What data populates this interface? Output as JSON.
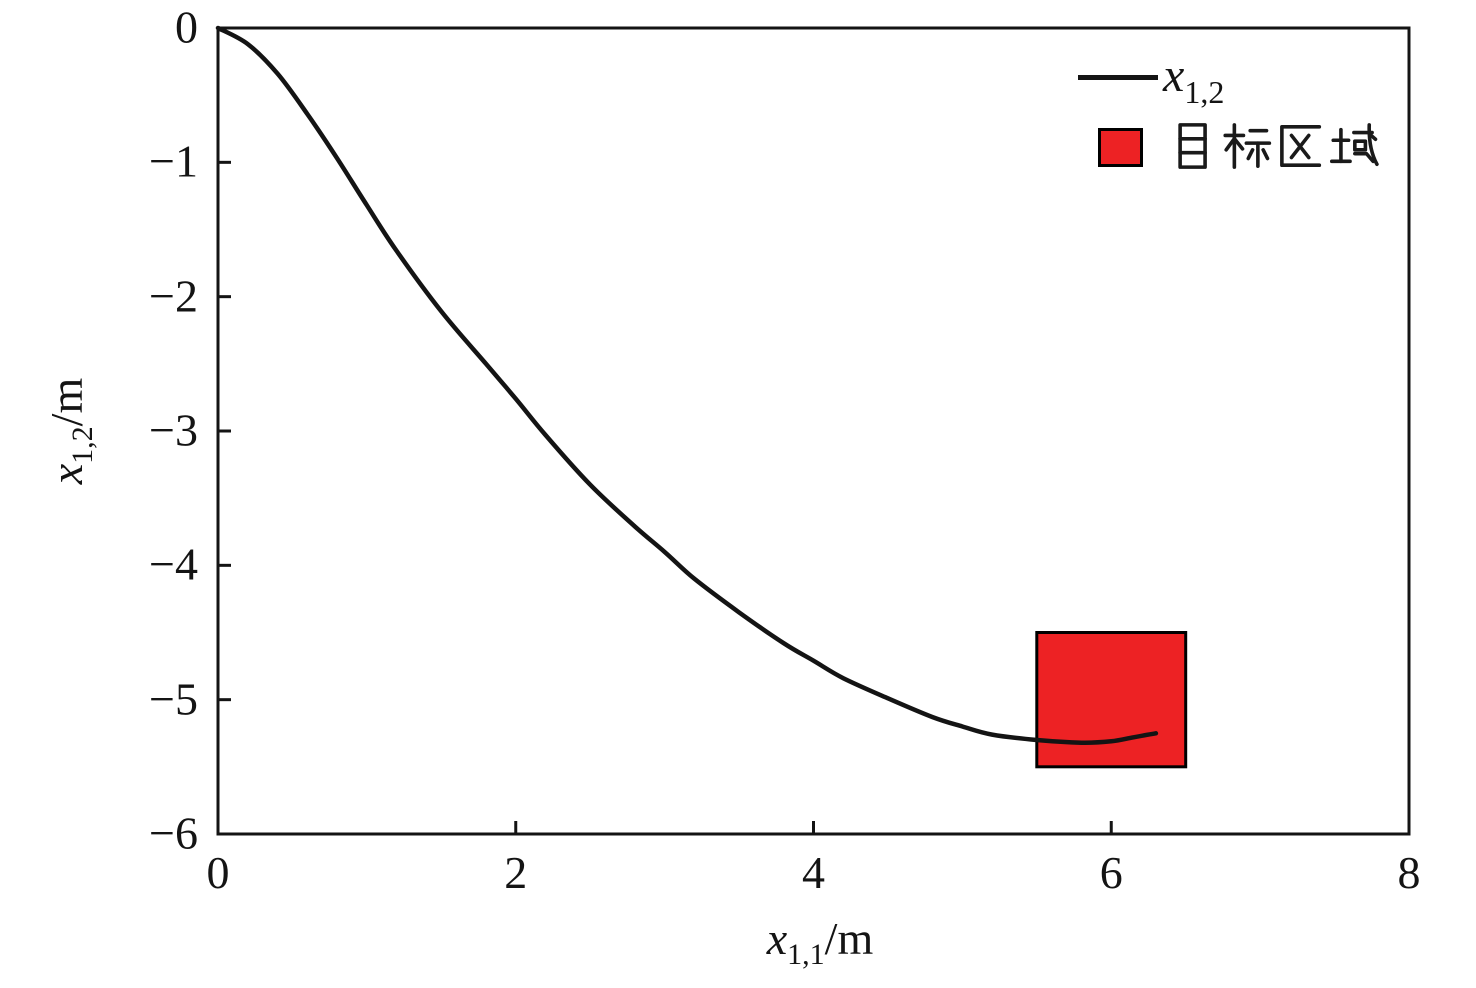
{
  "chart_data": {
    "type": "line",
    "title": "",
    "xlabel": "x_{1,1}/m",
    "ylabel": "x_{1,2}/m",
    "xlabel_parts": {
      "var": "x",
      "sub": "1,1",
      "unit": "/m"
    },
    "ylabel_parts": {
      "var": "x",
      "sub": "1,2",
      "unit": "/m"
    },
    "xlim": [
      0,
      8
    ],
    "ylim": [
      -6,
      0
    ],
    "xticks": {
      "values": [
        0,
        2,
        4,
        6,
        8
      ],
      "labels": [
        "0",
        "2",
        "4",
        "6",
        "8"
      ],
      "marked": [
        2,
        4,
        6
      ]
    },
    "yticks": {
      "values": [
        0,
        -1,
        -2,
        -3,
        -4,
        -5,
        -6
      ],
      "labels": [
        "0",
        "−1",
        "−2",
        "−3",
        "−4",
        "−5",
        "−6"
      ],
      "marked": [
        -1,
        -2,
        -3,
        -4,
        -5
      ]
    },
    "grid": false,
    "background": "#ffffff",
    "axis_color": "#141414",
    "tick_length": 13,
    "legend": {
      "position": "top-right",
      "frame": false,
      "items": [
        {
          "type": "line",
          "label": "x_{1,2}",
          "label_parts": {
            "var": "x",
            "sub": "1,2"
          },
          "color": "#141414"
        },
        {
          "type": "patch",
          "label": "目标区域",
          "fill": "#ed2224",
          "border": "#000000"
        }
      ]
    },
    "series": [
      {
        "name": "x_{1,2}",
        "color": "#141414",
        "line_width": 4.5,
        "points": [
          [
            0,
            0
          ],
          [
            0.2,
            -0.12
          ],
          [
            0.4,
            -0.34
          ],
          [
            0.6,
            -0.64
          ],
          [
            0.8,
            -0.97
          ],
          [
            1.0,
            -1.32
          ],
          [
            1.2,
            -1.66
          ],
          [
            1.5,
            -2.11
          ],
          [
            1.8,
            -2.5
          ],
          [
            2.0,
            -2.76
          ],
          [
            2.2,
            -3.03
          ],
          [
            2.5,
            -3.4
          ],
          [
            2.8,
            -3.71
          ],
          [
            3.0,
            -3.9
          ],
          [
            3.2,
            -4.1
          ],
          [
            3.5,
            -4.35
          ],
          [
            3.8,
            -4.58
          ],
          [
            4.0,
            -4.71
          ],
          [
            4.2,
            -4.84
          ],
          [
            4.5,
            -4.99
          ],
          [
            4.8,
            -5.13
          ],
          [
            5.0,
            -5.2
          ],
          [
            5.2,
            -5.26
          ],
          [
            5.5,
            -5.3
          ],
          [
            5.8,
            -5.32
          ],
          [
            6.0,
            -5.31
          ],
          [
            6.15,
            -5.28
          ],
          [
            6.3,
            -5.25
          ]
        ]
      }
    ],
    "target_region": {
      "label": "目标区域",
      "x_range": [
        5.5,
        6.5
      ],
      "y_range": [
        -5.5,
        -4.5
      ],
      "fill": "#ed2224",
      "border": "#000000",
      "border_width": 3
    }
  }
}
